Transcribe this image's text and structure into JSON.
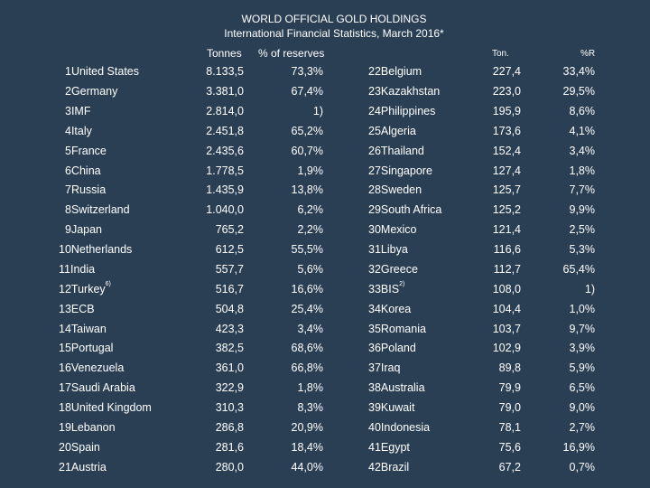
{
  "title": "WORLD OFFICIAL GOLD HOLDINGS",
  "subtitle": "International Financial Statistics, March 2016*",
  "headers": {
    "tonnes": "Tonnes",
    "pct_reserves": "% of reserves",
    "ton": "Ton.",
    "pct_r": "%R"
  },
  "rows": [
    {
      "left": {
        "name": "1United States",
        "tonnes": "8.133,5",
        "pct": "73,3%"
      },
      "right": {
        "name": "22Belgium",
        "tonnes": "227,4",
        "pct": "33,4%"
      }
    },
    {
      "left": {
        "name": "2Germany",
        "tonnes": "3.381,0",
        "pct": "67,4%"
      },
      "right": {
        "name": "23Kazakhstan",
        "tonnes": "223,0",
        "pct": "29,5%"
      }
    },
    {
      "left": {
        "name": "3IMF",
        "tonnes": "2.814,0",
        "pct": "1)"
      },
      "right": {
        "name": "24Philippines",
        "tonnes": "195,9",
        "pct": "8,6%"
      }
    },
    {
      "left": {
        "name": "4Italy",
        "tonnes": "2.451,8",
        "pct": "65,2%"
      },
      "right": {
        "name": "25Algeria",
        "tonnes": "173,6",
        "pct": "4,1%"
      }
    },
    {
      "left": {
        "name": "5France",
        "tonnes": "2.435,6",
        "pct": "60,7%"
      },
      "right": {
        "name": "26Thailand",
        "tonnes": "152,4",
        "pct": "3,4%"
      }
    },
    {
      "left": {
        "name": "6China",
        "tonnes": "1.778,5",
        "pct": "1,9%"
      },
      "right": {
        "name": "27Singapore",
        "tonnes": "127,4",
        "pct": "1,8%"
      }
    },
    {
      "left": {
        "name": "7Russia",
        "tonnes": "1.435,9",
        "pct": "13,8%"
      },
      "right": {
        "name": "28Sweden",
        "tonnes": "125,7",
        "pct": "7,7%"
      }
    },
    {
      "left": {
        "name": "8Switzerland",
        "tonnes": "1.040,0",
        "pct": "6,2%"
      },
      "right": {
        "name": "29South Africa",
        "tonnes": "125,2",
        "pct": "9,9%"
      }
    },
    {
      "left": {
        "name": "9Japan",
        "tonnes": "765,2",
        "pct": "2,2%"
      },
      "right": {
        "name": "30Mexico",
        "tonnes": "121,4",
        "pct": "2,5%"
      }
    },
    {
      "left": {
        "name": "10Netherlands",
        "tonnes": "612,5",
        "pct": "55,5%"
      },
      "right": {
        "name": "31Libya",
        "tonnes": "116,6",
        "pct": "5,3%"
      }
    },
    {
      "left": {
        "name": "11India",
        "tonnes": "557,7",
        "pct": "5,6%"
      },
      "right": {
        "name": "32Greece",
        "tonnes": "112,7",
        "pct": "65,4%"
      }
    },
    {
      "left": {
        "name": "12Turkey",
        "name_sup": "6)",
        "tonnes": "516,7",
        "pct": "16,6%"
      },
      "right": {
        "name": "33BIS",
        "name_sup": "2)",
        "tonnes": "108,0",
        "pct": "1)"
      }
    },
    {
      "left": {
        "name": "13ECB",
        "tonnes": "504,8",
        "pct": "25,4%"
      },
      "right": {
        "name": "34Korea",
        "tonnes": "104,4",
        "pct": "1,0%"
      }
    },
    {
      "left": {
        "name": "14Taiwan",
        "tonnes": "423,3",
        "pct": "3,4%"
      },
      "right": {
        "name": "35Romania",
        "tonnes": "103,7",
        "pct": "9,7%"
      }
    },
    {
      "left": {
        "name": "15Portugal",
        "tonnes": "382,5",
        "pct": "68,6%"
      },
      "right": {
        "name": "36Poland",
        "tonnes": "102,9",
        "pct": "3,9%"
      }
    },
    {
      "left": {
        "name": "16Venezuela",
        "tonnes": "361,0",
        "pct": "66,8%"
      },
      "right": {
        "name": "37Iraq",
        "tonnes": "89,8",
        "pct": "5,9%"
      }
    },
    {
      "left": {
        "name": "17Saudi Arabia",
        "tonnes": "322,9",
        "pct": "1,8%"
      },
      "right": {
        "name": "38Australia",
        "tonnes": "79,9",
        "pct": "6,5%"
      }
    },
    {
      "left": {
        "name": "18United Kingdom",
        "tonnes": "310,3",
        "pct": "8,3%"
      },
      "right": {
        "name": "39Kuwait",
        "tonnes": "79,0",
        "pct": "9,0%"
      }
    },
    {
      "left": {
        "name": "19Lebanon",
        "tonnes": "286,8",
        "pct": "20,9%"
      },
      "right": {
        "name": "40Indonesia",
        "tonnes": "78,1",
        "pct": "2,7%"
      }
    },
    {
      "left": {
        "name": "20Spain",
        "tonnes": "281,6",
        "pct": "18,4%"
      },
      "right": {
        "name": "41Egypt",
        "tonnes": "75,6",
        "pct": "16,9%"
      }
    },
    {
      "left": {
        "name": "21Austria",
        "tonnes": "280,0",
        "pct": "44,0%"
      },
      "right": {
        "name": "42Brazil",
        "tonnes": "67,2",
        "pct": "0,7%"
      }
    }
  ]
}
